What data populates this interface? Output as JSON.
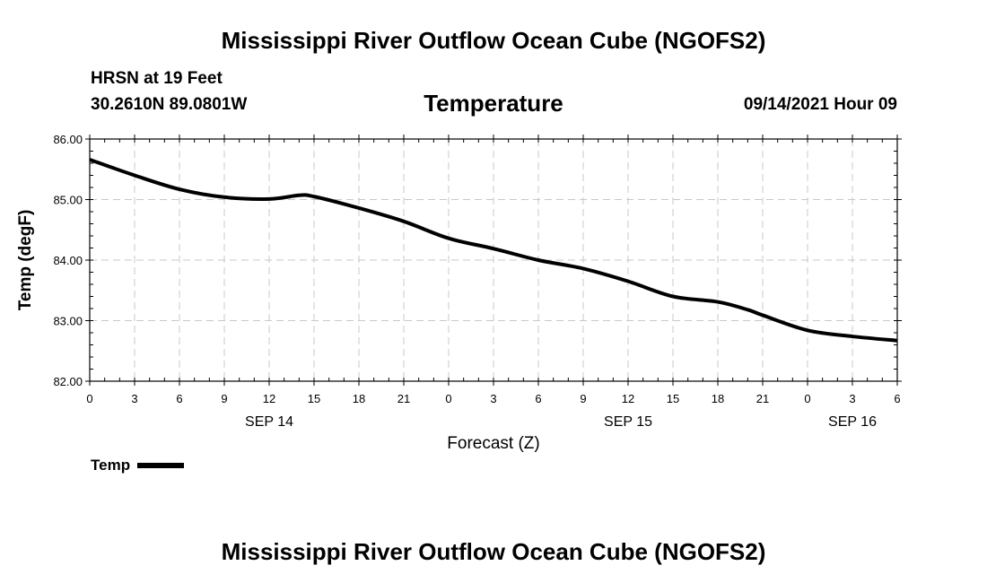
{
  "header": {
    "title": "Mississippi River Outflow Ocean Cube (NGOFS2)",
    "station": "HRSN at 19 Feet",
    "coords": "30.2610N  89.0801W",
    "subtitle": "Temperature",
    "datetime": "09/14/2021 Hour 09"
  },
  "footer": {
    "title": "Mississippi River Outflow Ocean Cube (NGOFS2)"
  },
  "legend": {
    "label": "Temp"
  },
  "chart_data": {
    "type": "line",
    "title": "Temperature",
    "xlabel": "Forecast (Z)",
    "ylabel": "Temp (degF)",
    "xlim": [
      0,
      54
    ],
    "ylim": [
      82.0,
      86.0
    ],
    "grid": true,
    "yticks": [
      "82.00",
      "83.00",
      "84.00",
      "85.00",
      "86.00"
    ],
    "xtick_labels": [
      "0",
      "3",
      "6",
      "9",
      "12",
      "15",
      "18",
      "21",
      "0",
      "3",
      "6",
      "9",
      "12",
      "15",
      "18",
      "21",
      "0",
      "3",
      "6"
    ],
    "date_labels": [
      {
        "label": "SEP 14",
        "at": 12
      },
      {
        "label": "SEP 15",
        "at": 36
      },
      {
        "label": "SEP 16",
        "at": 51
      }
    ],
    "series": [
      {
        "name": "Temp",
        "color": "#000000",
        "x": [
          0,
          3,
          6,
          9,
          12,
          14,
          15,
          18,
          21,
          24,
          27,
          30,
          33,
          36,
          39,
          42,
          44,
          45,
          48,
          51,
          54
        ],
        "y": [
          85.66,
          85.4,
          85.17,
          85.04,
          85.01,
          85.07,
          85.05,
          84.86,
          84.64,
          84.36,
          84.19,
          84.0,
          83.86,
          83.65,
          83.4,
          83.31,
          83.18,
          83.09,
          82.84,
          82.74,
          82.67
        ]
      }
    ]
  }
}
